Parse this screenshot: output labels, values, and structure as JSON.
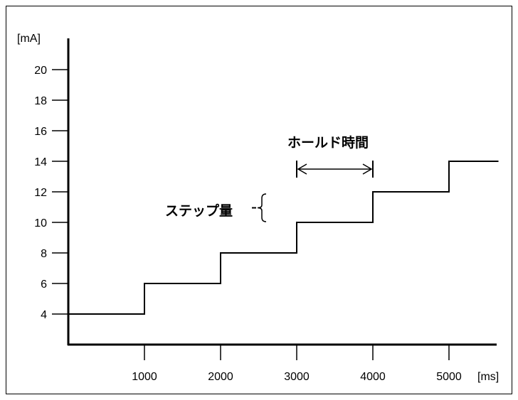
{
  "chart_data": {
    "type": "line",
    "step": true,
    "x": [
      0,
      1000,
      2000,
      3000,
      4000,
      5000,
      5650
    ],
    "values": [
      4,
      6,
      8,
      10,
      12,
      14,
      14
    ],
    "xlim": [
      0,
      5650
    ],
    "ylim": [
      2,
      22
    ],
    "xticks": [
      1000,
      2000,
      3000,
      4000,
      5000
    ],
    "yticks": [
      4,
      6,
      8,
      10,
      12,
      14,
      16,
      18,
      20
    ],
    "xlabel": "[ms]",
    "ylabel": "[mA]",
    "grid": false,
    "annotations": {
      "hold_time": {
        "label": "ホールド時間",
        "x_start": 3000,
        "x_end": 4000
      },
      "step_amount": {
        "label": "ステップ量",
        "y_low": 10,
        "y_high": 12
      }
    }
  }
}
